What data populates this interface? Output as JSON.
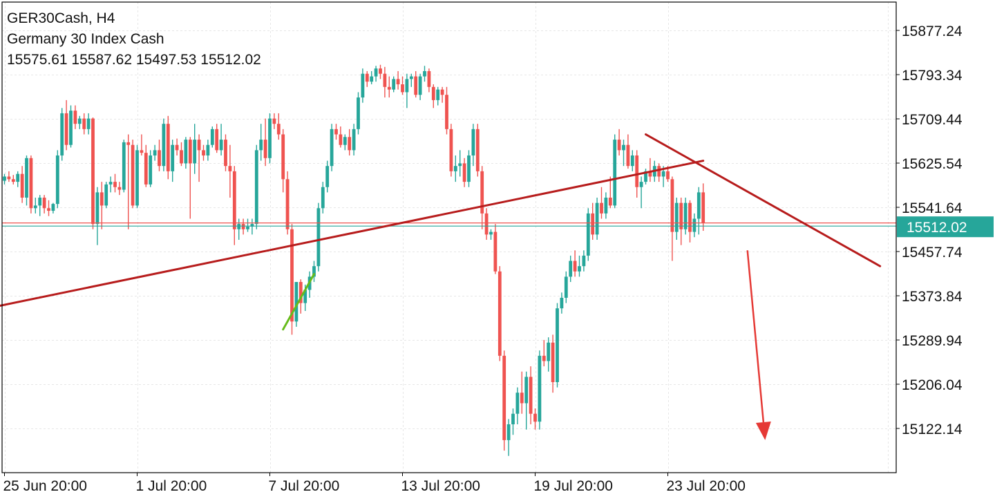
{
  "header": {
    "symbol_line": "GER30Cash, H4",
    "description": "Germany 30 Index Cash",
    "ohlc": "15575.61 15587.62 15497.53 15512.02"
  },
  "colors": {
    "bull": "#26a69a",
    "bear": "#ef5350",
    "trendline": "#b71c1c",
    "arrow": "#e53935",
    "bid_line": "#ef5350",
    "ask_line": "#26a69a",
    "highlight": "#66bb1a",
    "grid": "#e6e6e6",
    "border": "#000000"
  },
  "chart_data": {
    "type": "candlestick",
    "timeframe": "H4",
    "y_ticks": [
      15877.24,
      15793.34,
      15709.44,
      15625.54,
      15541.64,
      15457.74,
      15373.84,
      15289.94,
      15206.04,
      15122.14
    ],
    "y_range": [
      15050,
      15930
    ],
    "x_tick_labels": [
      "25 Jun 20:00",
      "1 Jul 20:00",
      "7 Jul 20:00",
      "13 Jul 20:00",
      "19 Jul 20:00",
      "23 Jul 20:00"
    ],
    "x_tick_bar_index": [
      0,
      30,
      60,
      90,
      120,
      150
    ],
    "current_price": "15512.02",
    "current_price_value": 15512.02,
    "ask_price_value": 15506,
    "grid": true,
    "candles": [
      [
        15592,
        15605,
        15585,
        15600
      ],
      [
        15600,
        15610,
        15590,
        15595
      ],
      [
        15595,
        15603,
        15585,
        15590
      ],
      [
        15590,
        15610,
        15580,
        15605
      ],
      [
        15605,
        15620,
        15550,
        15560
      ],
      [
        15560,
        15640,
        15545,
        15635
      ],
      [
        15635,
        15640,
        15530,
        15540
      ],
      [
        15540,
        15560,
        15530,
        15545
      ],
      [
        15545,
        15565,
        15525,
        15560
      ],
      [
        15560,
        15565,
        15530,
        15540
      ],
      [
        15540,
        15555,
        15525,
        15535
      ],
      [
        15535,
        15550,
        15530,
        15548
      ],
      [
        15548,
        15650,
        15540,
        15640
      ],
      [
        15640,
        15730,
        15630,
        15720
      ],
      [
        15720,
        15745,
        15650,
        15660
      ],
      [
        15660,
        15735,
        15655,
        15725
      ],
      [
        15725,
        15735,
        15690,
        15700
      ],
      [
        15700,
        15715,
        15690,
        15710
      ],
      [
        15710,
        15720,
        15680,
        15690
      ],
      [
        15690,
        15720,
        15680,
        15710
      ],
      [
        15710,
        15712,
        15500,
        15510
      ],
      [
        15510,
        15580,
        15470,
        15570
      ],
      [
        15570,
        15590,
        15500,
        15545
      ],
      [
        15545,
        15590,
        15540,
        15585
      ],
      [
        15585,
        15600,
        15570,
        15590
      ],
      [
        15590,
        15605,
        15570,
        15580
      ],
      [
        15580,
        15590,
        15565,
        15575
      ],
      [
        15575,
        15670,
        15570,
        15665
      ],
      [
        15665,
        15680,
        15500,
        15660
      ],
      [
        15660,
        15670,
        15540,
        15545
      ],
      [
        15545,
        15660,
        15540,
        15650
      ],
      [
        15650,
        15680,
        15640,
        15645
      ],
      [
        15645,
        15660,
        15580,
        15585
      ],
      [
        15585,
        15650,
        15580,
        15640
      ],
      [
        15640,
        15660,
        15630,
        15650
      ],
      [
        15650,
        15670,
        15610,
        15620
      ],
      [
        15620,
        15710,
        15610,
        15700
      ],
      [
        15700,
        15715,
        15595,
        15610
      ],
      [
        15610,
        15670,
        15590,
        15660
      ],
      [
        15660,
        15672,
        15640,
        15650
      ],
      [
        15650,
        15665,
        15620,
        15625
      ],
      [
        15625,
        15675,
        15615,
        15670
      ],
      [
        15670,
        15675,
        15520,
        15625
      ],
      [
        15625,
        15700,
        15605,
        15670
      ],
      [
        15670,
        15680,
        15590,
        15650
      ],
      [
        15650,
        15660,
        15630,
        15640
      ],
      [
        15640,
        15670,
        15630,
        15660
      ],
      [
        15660,
        15695,
        15655,
        15690
      ],
      [
        15690,
        15700,
        15645,
        15650
      ],
      [
        15650,
        15700,
        15640,
        15670
      ],
      [
        15670,
        15680,
        15610,
        15620
      ],
      [
        15620,
        15660,
        15560,
        15610
      ],
      [
        15610,
        15620,
        15470,
        15500
      ],
      [
        15500,
        15520,
        15480,
        15510
      ],
      [
        15510,
        15520,
        15490,
        15500
      ],
      [
        15500,
        15520,
        15495,
        15505
      ],
      [
        15505,
        15520,
        15490,
        15510
      ],
      [
        15510,
        15660,
        15500,
        15650
      ],
      [
        15650,
        15700,
        15630,
        15670
      ],
      [
        15670,
        15710,
        15620,
        15635
      ],
      [
        15635,
        15720,
        15625,
        15710
      ],
      [
        15710,
        15720,
        15690,
        15700
      ],
      [
        15700,
        15720,
        15670,
        15680
      ],
      [
        15680,
        15690,
        15570,
        15595
      ],
      [
        15595,
        15610,
        15490,
        15500
      ],
      [
        15500,
        15510,
        15300,
        15325
      ],
      [
        15325,
        15400,
        15315,
        15400
      ],
      [
        15400,
        15405,
        15340,
        15360
      ],
      [
        15360,
        15395,
        15345,
        15385
      ],
      [
        15385,
        15420,
        15370,
        15410
      ],
      [
        15410,
        15440,
        15400,
        15430
      ],
      [
        15430,
        15550,
        15420,
        15540
      ],
      [
        15540,
        15590,
        15530,
        15580
      ],
      [
        15580,
        15630,
        15570,
        15620
      ],
      [
        15620,
        15700,
        15610,
        15690
      ],
      [
        15690,
        15700,
        15670,
        15680
      ],
      [
        15680,
        15695,
        15655,
        15660
      ],
      [
        15660,
        15680,
        15650,
        15675
      ],
      [
        15675,
        15690,
        15640,
        15650
      ],
      [
        15650,
        15700,
        15640,
        15690
      ],
      [
        15690,
        15760,
        15680,
        15750
      ],
      [
        15750,
        15805,
        15740,
        15795
      ],
      [
        15795,
        15800,
        15770,
        15780
      ],
      [
        15780,
        15800,
        15775,
        15790
      ],
      [
        15790,
        15810,
        15780,
        15805
      ],
      [
        15805,
        15812,
        15785,
        15795
      ],
      [
        15795,
        15808,
        15750,
        15770
      ],
      [
        15770,
        15790,
        15750,
        15765
      ],
      [
        15765,
        15790,
        15760,
        15785
      ],
      [
        15785,
        15800,
        15765,
        15775
      ],
      [
        15775,
        15790,
        15755,
        15760
      ],
      [
        15760,
        15795,
        15730,
        15785
      ],
      [
        15785,
        15795,
        15770,
        15790
      ],
      [
        15790,
        15800,
        15750,
        15755
      ],
      [
        15755,
        15795,
        15745,
        15790
      ],
      [
        15790,
        15810,
        15780,
        15800
      ],
      [
        15800,
        15805,
        15760,
        15770
      ],
      [
        15770,
        15775,
        15730,
        15745
      ],
      [
        15745,
        15770,
        15735,
        15765
      ],
      [
        15765,
        15770,
        15740,
        15755
      ],
      [
        15755,
        15770,
        15680,
        15690
      ],
      [
        15690,
        15700,
        15600,
        15610
      ],
      [
        15610,
        15640,
        15590,
        15620
      ],
      [
        15620,
        15650,
        15600,
        15625
      ],
      [
        15625,
        15635,
        15580,
        15590
      ],
      [
        15590,
        15650,
        15580,
        15640
      ],
      [
        15640,
        15700,
        15620,
        15690
      ],
      [
        15690,
        15700,
        15600,
        15610
      ],
      [
        15610,
        15620,
        15500,
        15530
      ],
      [
        15530,
        15540,
        15480,
        15490
      ],
      [
        15490,
        15500,
        15480,
        15495
      ],
      [
        15495,
        15510,
        15415,
        15420
      ],
      [
        15420,
        15430,
        15250,
        15260
      ],
      [
        15260,
        15270,
        15080,
        15100
      ],
      [
        15100,
        15140,
        15070,
        15130
      ],
      [
        15130,
        15160,
        15110,
        15150
      ],
      [
        15150,
        15200,
        15130,
        15190
      ],
      [
        15190,
        15230,
        15150,
        15170
      ],
      [
        15170,
        15230,
        15120,
        15220
      ],
      [
        15220,
        15240,
        15130,
        15150
      ],
      [
        15150,
        15160,
        15120,
        15135
      ],
      [
        15135,
        15270,
        15120,
        15260
      ],
      [
        15260,
        15290,
        15240,
        15250
      ],
      [
        15250,
        15295,
        15230,
        15285
      ],
      [
        15285,
        15300,
        15190,
        15210
      ],
      [
        15210,
        15360,
        15200,
        15350
      ],
      [
        15350,
        15380,
        15340,
        15370
      ],
      [
        15370,
        15420,
        15360,
        15410
      ],
      [
        15410,
        15450,
        15400,
        15440
      ],
      [
        15440,
        15460,
        15410,
        15420
      ],
      [
        15420,
        15450,
        15410,
        15430
      ],
      [
        15430,
        15460,
        15420,
        15450
      ],
      [
        15450,
        15540,
        15440,
        15530
      ],
      [
        15530,
        15550,
        15480,
        15490
      ],
      [
        15490,
        15560,
        15480,
        15550
      ],
      [
        15550,
        15580,
        15520,
        15530
      ],
      [
        15530,
        15570,
        15520,
        15560
      ],
      [
        15560,
        15600,
        15540,
        15545
      ],
      [
        15545,
        15680,
        15540,
        15670
      ],
      [
        15670,
        15690,
        15640,
        15650
      ],
      [
        15650,
        15670,
        15620,
        15660
      ],
      [
        15660,
        15680,
        15615,
        15620
      ],
      [
        15620,
        15650,
        15610,
        15640
      ],
      [
        15640,
        15650,
        15560,
        15580
      ],
      [
        15580,
        15600,
        15540,
        15590
      ],
      [
        15590,
        15615,
        15585,
        15610
      ],
      [
        15610,
        15635,
        15590,
        15600
      ],
      [
        15600,
        15630,
        15590,
        15620
      ],
      [
        15620,
        15625,
        15590,
        15600
      ],
      [
        15600,
        15620,
        15580,
        15610
      ],
      [
        15610,
        15620,
        15590,
        15595
      ],
      [
        15595,
        15600,
        15440,
        15495
      ],
      [
        15495,
        15560,
        15480,
        15550
      ],
      [
        15550,
        15560,
        15470,
        15500
      ],
      [
        15500,
        15560,
        15490,
        15550
      ],
      [
        15550,
        15555,
        15475,
        15495
      ],
      [
        15495,
        15530,
        15485,
        15520
      ],
      [
        15520,
        15580,
        15490,
        15570
      ],
      [
        15570,
        15587,
        15497,
        15512
      ]
    ],
    "trendlines": [
      {
        "from": [
          -1,
          15355
        ],
        "to": [
          158,
          15630
        ]
      },
      {
        "from": [
          145,
          15680
        ],
        "to": [
          198,
          15430
        ]
      }
    ],
    "highlight_line": {
      "from": [
        63,
        15310
      ],
      "to": [
        70,
        15415
      ]
    },
    "arrow": {
      "from": [
        168,
        15460
      ],
      "to": [
        172,
        15100
      ]
    }
  }
}
